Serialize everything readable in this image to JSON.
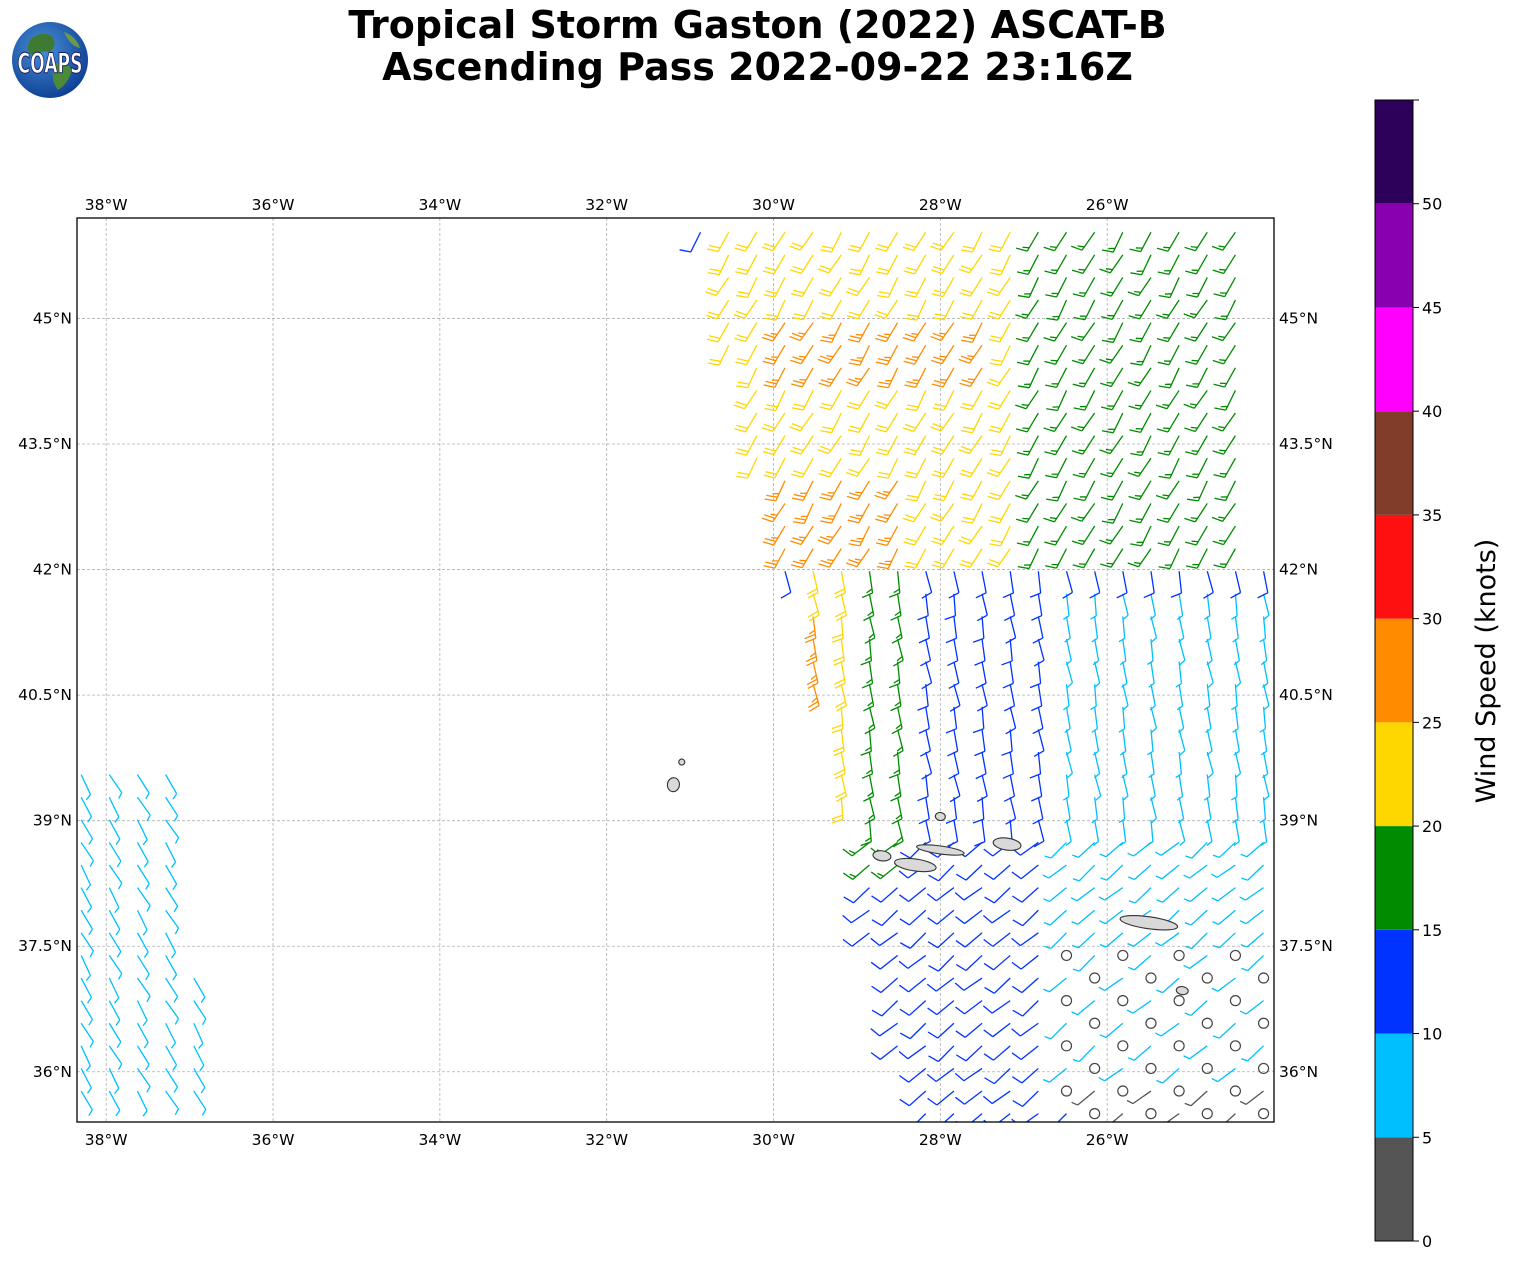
{
  "title": {
    "line1": "Tropical Storm Gaston (2022) ASCAT-B",
    "line2": "Ascending Pass 2022-09-22 23:16Z"
  },
  "logo": {
    "text": "COAPS",
    "icon": "globe-logo-icon"
  },
  "map": {
    "lon_range": [
      -38.35,
      -24.0
    ],
    "lat_range": [
      35.4,
      46.2
    ],
    "lon_ticks": [
      {
        "value": -38,
        "label": "38°W"
      },
      {
        "value": -36,
        "label": "36°W"
      },
      {
        "value": -34,
        "label": "34°W"
      },
      {
        "value": -32,
        "label": "32°W"
      },
      {
        "value": -30,
        "label": "30°W"
      },
      {
        "value": -28,
        "label": "28°W"
      },
      {
        "value": -26,
        "label": "26°W"
      }
    ],
    "lat_ticks": [
      {
        "value": 45,
        "label": "45°N"
      },
      {
        "value": 43.5,
        "label": "43.5°N"
      },
      {
        "value": 42,
        "label": "42°N"
      },
      {
        "value": 40.5,
        "label": "40.5°N"
      },
      {
        "value": 39,
        "label": "39°N"
      },
      {
        "value": 37.5,
        "label": "37.5°N"
      },
      {
        "value": 36,
        "label": "36°N"
      }
    ],
    "grid": true,
    "islands": [
      {
        "name": "Corvo",
        "lon": -31.1,
        "lat": 39.7
      },
      {
        "name": "Flores",
        "lon": -31.2,
        "lat": 39.43
      },
      {
        "name": "Graciosa",
        "lon": -28.0,
        "lat": 39.05
      },
      {
        "name": "Faial",
        "lon": -28.7,
        "lat": 38.58
      },
      {
        "name": "Pico",
        "lon": -28.3,
        "lat": 38.47
      },
      {
        "name": "Sao Jorge",
        "lon": -28.0,
        "lat": 38.65
      },
      {
        "name": "Terceira",
        "lon": -27.2,
        "lat": 38.72
      },
      {
        "name": "Sao Miguel",
        "lon": -25.5,
        "lat": 37.78
      },
      {
        "name": "Santa Maria",
        "lon": -25.1,
        "lat": 36.97
      }
    ]
  },
  "colorbar": {
    "label": "Wind Speed (knots)",
    "levels": [
      0,
      5,
      10,
      15,
      20,
      25,
      30,
      35,
      40,
      45,
      50,
      55
    ],
    "tick_labels": [
      "0",
      "5",
      "10",
      "15",
      "20",
      "25",
      "30",
      "35",
      "40",
      "45",
      "50"
    ],
    "colors": [
      "#555555",
      "#00bfff",
      "#0033ff",
      "#008c00",
      "#ffd700",
      "#ff8c00",
      "#ff1010",
      "#823c2a",
      "#ff00ff",
      "#8800b0",
      "#2d005a"
    ]
  },
  "chart_data": {
    "type": "wind_barbs",
    "units": "knots",
    "swaths": [
      {
        "lon_left_top": -30.95,
        "lon_right_top": -24.2,
        "lat_top": 46.2,
        "lon_left_bottom": -28.3,
        "lon_right_bottom": -24.0,
        "lat_bottom": 35.4
      },
      {
        "lon_left_top": -38.35,
        "lon_right_top": -37.2,
        "lat_top": 39.8,
        "lon_left_bottom": -38.35,
        "lon_right_bottom": -36.8,
        "lat_bottom": 35.6
      }
    ],
    "speed_regions": [
      {
        "lat_min": 44.2,
        "lat_max": 45.2,
        "lon_min": -30.2,
        "lon_max": -27.2,
        "speed": 27
      },
      {
        "lat_min": 42.1,
        "lat_max": 43.1,
        "lon_min": -30.0,
        "lon_max": -28.2,
        "speed": 27
      },
      {
        "lat_min": 42.05,
        "lat_max": 42.3,
        "lon_min": -28.9,
        "lon_max": -28.4,
        "speed": 31
      },
      {
        "lat_min": 40.0,
        "lat_max": 41.6,
        "lon_min": -29.7,
        "lon_max": -29.4,
        "speed": 26
      },
      {
        "lat_min": 42.0,
        "lat_max": 46.2,
        "lon_min": -30.8,
        "lon_max": -27.0,
        "speed": 22
      },
      {
        "lat_min": 42.0,
        "lat_max": 46.2,
        "lon_min": -27.0,
        "lon_max": -24.0,
        "speed": 17
      },
      {
        "lat_min": 45.6,
        "lat_max": 46.2,
        "lon_min": -26.2,
        "lon_max": -24.0,
        "speed": 12
      },
      {
        "lat_min": 41.8,
        "lat_max": 42.3,
        "lon_min": -26.5,
        "lon_max": -24.0,
        "speed": 12
      },
      {
        "lat_min": 39.0,
        "lat_max": 42.0,
        "lon_min": -29.7,
        "lon_max": -28.9,
        "speed": 22
      },
      {
        "lat_min": 38.3,
        "lat_max": 42.0,
        "lon_min": -28.9,
        "lon_max": -28.2,
        "speed": 17
      },
      {
        "lat_min": 36.0,
        "lat_max": 42.0,
        "lon_min": -28.2,
        "lon_max": -26.6,
        "speed": 12
      },
      {
        "lat_min": 36.0,
        "lat_max": 42.0,
        "lon_min": -26.6,
        "lon_max": -24.0,
        "speed": 7
      },
      {
        "lat_min": 35.4,
        "lat_max": 38.1,
        "lon_min": -26.3,
        "lon_max": -24.0,
        "speed": 3
      },
      {
        "lat_min": 35.4,
        "lat_max": 39.8,
        "lon_min": -38.35,
        "lon_max": -36.8,
        "speed": 7
      }
    ],
    "calm_circles_region": {
      "lat_min": 35.5,
      "lat_max": 37.6,
      "lon_min": -26.8,
      "lon_max": -24.1
    }
  }
}
